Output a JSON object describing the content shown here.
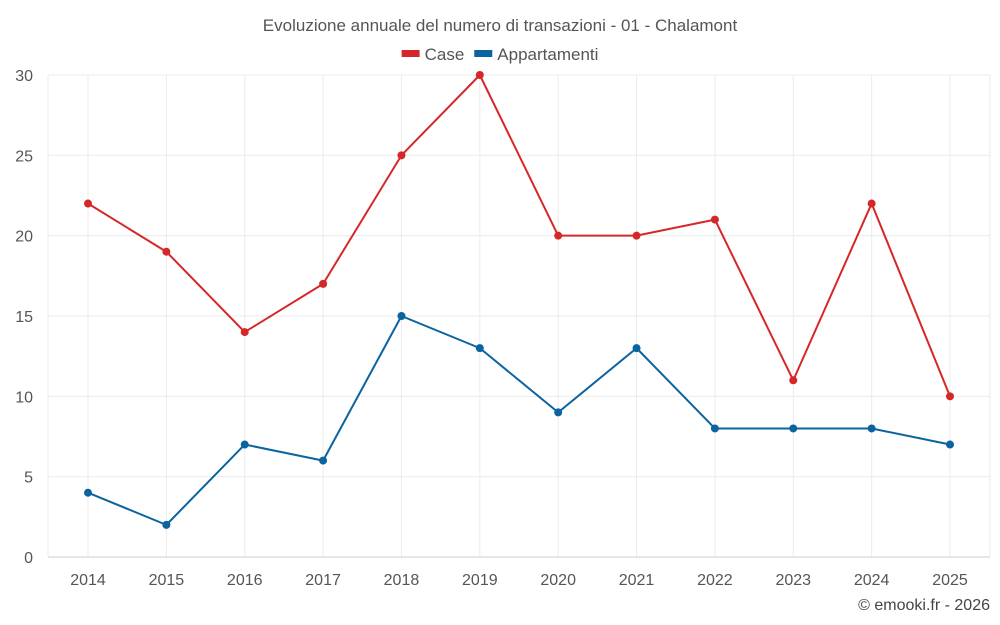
{
  "chart_data": {
    "type": "line",
    "title": "Evoluzione annuale del numero di transazioni - 01 - Chalamont",
    "xlabel": "",
    "ylabel": "",
    "categories": [
      "2014",
      "2015",
      "2016",
      "2017",
      "2018",
      "2019",
      "2020",
      "2021",
      "2022",
      "2023",
      "2024",
      "2025"
    ],
    "ylim": [
      0,
      30
    ],
    "yticks": [
      0,
      5,
      10,
      15,
      20,
      25,
      30
    ],
    "grid": true,
    "legend_position": "top-center",
    "series": [
      {
        "name": "Case",
        "color": "#d62728",
        "values": [
          22,
          19,
          14,
          17,
          25,
          30,
          20,
          20,
          21,
          11,
          22,
          10
        ]
      },
      {
        "name": "Appartamenti",
        "color": "#0b63a0",
        "values": [
          4,
          2,
          7,
          6,
          15,
          13,
          9,
          13,
          8,
          8,
          8,
          7
        ]
      }
    ]
  },
  "credit": "© emooki.fr - 2026"
}
